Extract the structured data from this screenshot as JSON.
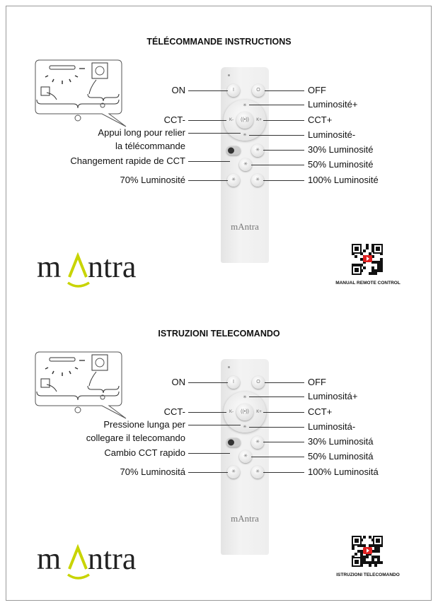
{
  "sections": [
    {
      "title": "TÉLÉCOMMANDE INSTRUCTIONS",
      "labels": {
        "on": "ON",
        "off": "OFF",
        "brightness_up": "Luminosité+",
        "cct_minus": "CCT-",
        "cct_plus": "CCT+",
        "pair_line1": "Appui long pour relier",
        "pair_line2": "la télécommande",
        "brightness_down": "Luminosité-",
        "quick_cct": "Changement rapide de CCT",
        "b30": "30% Luminosité",
        "b50": "50% Luminosité",
        "b70": "70% Luminosité",
        "b100": "100% Luminosité"
      },
      "remote_brand": "mAntra",
      "logo_text": "mantra",
      "qr_caption": "MANUAL REMOTE CONTROL"
    },
    {
      "title": "ISTRUZIONI TELECOMANDO",
      "labels": {
        "on": "ON",
        "off": "OFF",
        "brightness_up": "Luminositá+",
        "cct_minus": "CCT-",
        "cct_plus": "CCT+",
        "pair_line1": "Pressione lunga per",
        "pair_line2": "collegare il telecomando",
        "brightness_down": "Luminositá-",
        "quick_cct": "Cambio CCT rapido",
        "b30": "30% Luminositá",
        "b50": "50% Luminositá",
        "b70": "70% Luminositá",
        "b100": "100% Luminositá"
      },
      "remote_brand": "mAntra",
      "logo_text": "mantra",
      "qr_caption": "ISTRUZIONI TELECOMANDO"
    }
  ],
  "button_glyphs": {
    "on": "I",
    "off": "O",
    "cct_minus": "K-",
    "cct_plus": "K+",
    "star": "✳"
  },
  "colors": {
    "logo_accent": "#c8d400",
    "logo_text": "#222222",
    "qr_play": "#e02020"
  }
}
